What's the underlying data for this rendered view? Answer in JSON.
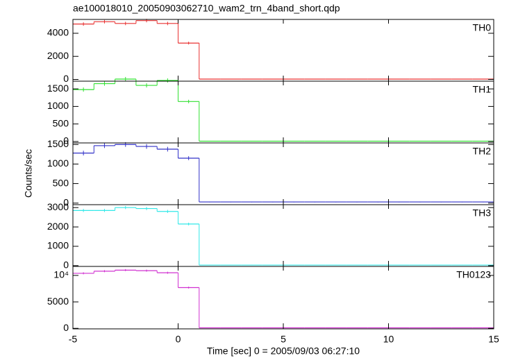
{
  "title": "ae100018010_20050903062710_wam2_trn_4band_short.qdp",
  "xlabel": "Time [sec] 0 = 2005/09/03 06:27:10",
  "ylabel": "Counts/sec",
  "xlim": [
    -5,
    15
  ],
  "xticks": [
    -5,
    0,
    5,
    10,
    15
  ],
  "chart_data": [
    {
      "type": "histogram",
      "label": "TH0",
      "color": "#e83030",
      "bins": [
        -5,
        -4,
        -3,
        -2,
        -1,
        0,
        1,
        2,
        3,
        4,
        5,
        6,
        7,
        8,
        9,
        10,
        11,
        12,
        13,
        14,
        15
      ],
      "values": [
        4800,
        5000,
        4850,
        5100,
        4850,
        3150,
        30,
        30,
        30,
        30,
        30,
        30,
        30,
        30,
        30,
        30,
        30,
        30,
        30,
        30
      ],
      "errors": [
        150,
        150,
        150,
        150,
        150,
        120,
        20,
        20,
        20,
        20,
        20,
        20,
        20,
        20,
        20,
        20,
        20,
        20,
        20,
        20
      ],
      "ylim": [
        -150,
        5200
      ],
      "yticks": [
        0,
        2000,
        4000
      ]
    },
    {
      "type": "histogram",
      "label": "TH1",
      "color": "#30e030",
      "bins": [
        -5,
        -4,
        -3,
        -2,
        -1,
        0,
        1,
        2,
        3,
        4,
        5,
        6,
        7,
        8,
        9,
        10,
        11,
        12,
        13,
        14,
        15
      ],
      "values": [
        1480,
        1650,
        1780,
        1600,
        1740,
        1140,
        10,
        10,
        10,
        10,
        10,
        10,
        10,
        10,
        10,
        10,
        10,
        10,
        10,
        10
      ],
      "errors": [
        60,
        60,
        60,
        60,
        60,
        50,
        8,
        8,
        8,
        8,
        8,
        8,
        8,
        8,
        8,
        8,
        8,
        8,
        8,
        8
      ],
      "ylim": [
        -40,
        1720
      ],
      "yticks": [
        0,
        500,
        1000,
        1500
      ]
    },
    {
      "type": "histogram",
      "label": "TH2",
      "color": "#3030c8",
      "bins": [
        -5,
        -4,
        -3,
        -2,
        -1,
        0,
        1,
        2,
        3,
        4,
        5,
        6,
        7,
        8,
        9,
        10,
        11,
        12,
        13,
        14,
        15
      ],
      "values": [
        1280,
        1470,
        1500,
        1450,
        1380,
        1150,
        30,
        30,
        30,
        30,
        30,
        30,
        30,
        30,
        30,
        30,
        30,
        30,
        30,
        30
      ],
      "errors": [
        60,
        60,
        60,
        60,
        60,
        50,
        10,
        10,
        10,
        10,
        10,
        10,
        10,
        10,
        10,
        10,
        10,
        10,
        10,
        10
      ],
      "ylim": [
        -40,
        1540
      ],
      "yticks": [
        0,
        500,
        1000,
        1500
      ]
    },
    {
      "type": "histogram",
      "label": "TH3",
      "color": "#30e8e8",
      "bins": [
        -5,
        -4,
        -3,
        -2,
        -1,
        0,
        1,
        2,
        3,
        4,
        5,
        6,
        7,
        8,
        9,
        10,
        11,
        12,
        13,
        14,
        15
      ],
      "values": [
        2850,
        2850,
        3000,
        2950,
        2800,
        2150,
        30,
        30,
        30,
        30,
        30,
        30,
        30,
        30,
        30,
        30,
        30,
        30,
        30,
        30
      ],
      "errors": [
        80,
        80,
        80,
        80,
        80,
        70,
        15,
        15,
        15,
        15,
        15,
        15,
        15,
        15,
        15,
        15,
        15,
        15,
        15,
        15
      ],
      "ylim": [
        -40,
        3150
      ],
      "yticks": [
        0,
        1000,
        2000,
        3000
      ]
    },
    {
      "type": "histogram",
      "label": "TH0123",
      "color": "#d030d0",
      "bins": [
        -5,
        -4,
        -3,
        -2,
        -1,
        0,
        1,
        2,
        3,
        4,
        5,
        6,
        7,
        8,
        9,
        10,
        11,
        12,
        13,
        14,
        15
      ],
      "values": [
        10400,
        10800,
        11000,
        10900,
        10500,
        7700,
        100,
        100,
        100,
        100,
        100,
        100,
        100,
        100,
        100,
        100,
        100,
        100,
        100,
        100
      ],
      "errors": [
        200,
        200,
        200,
        200,
        200,
        180,
        40,
        40,
        40,
        40,
        40,
        40,
        40,
        40,
        40,
        40,
        40,
        40,
        40,
        40
      ],
      "ylim": [
        -100,
        11700
      ],
      "yticks": [
        0,
        5000,
        {
          "value": 10000,
          "label": "10⁴"
        }
      ]
    }
  ]
}
